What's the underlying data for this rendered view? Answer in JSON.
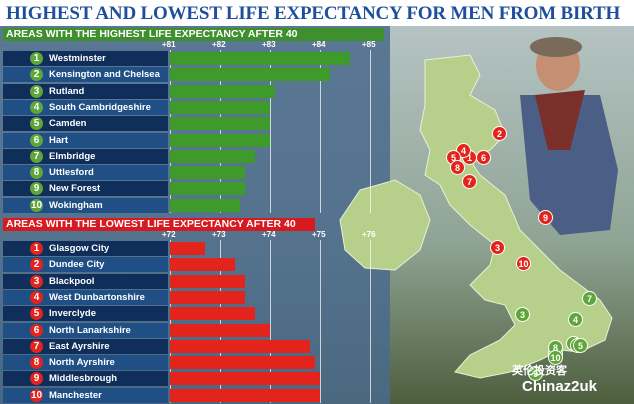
{
  "title": "HIGHEST AND LOWEST LIFE EXPECTANCY FOR MEN FROM BIRTH",
  "watermark": {
    "line1": "英伦投资客",
    "line2": "Chinaz2uk"
  },
  "colors": {
    "title": "#1d4f9c",
    "high": "#3f9a2c",
    "low": "#e3241d",
    "row_dark": "#0f2e5a",
    "row_light": "#1f4f85"
  },
  "chart_data": [
    {
      "type": "bar",
      "title": "AREAS WITH THE HIGHEST LIFE EXPECTANCY AFTER 40",
      "orientation": "horizontal",
      "ticks": [
        "+81",
        "+82",
        "+83",
        "+84",
        "+85"
      ],
      "xlim": [
        81,
        85
      ],
      "ranks": [
        "1",
        "2",
        "3",
        "4",
        "5",
        "6",
        "7",
        "8",
        "9",
        "10"
      ],
      "categories": [
        "Westminster",
        "Kensington and Chelsea",
        "Rutland",
        "South Cambridgeshire",
        "Camden",
        "Hart",
        "Elmbridge",
        "Uttlesford",
        "New Forest",
        "Wokingham"
      ],
      "values": [
        84.6,
        84.2,
        83.1,
        83.0,
        83.0,
        83.0,
        82.7,
        82.5,
        82.5,
        82.4
      ]
    },
    {
      "type": "bar",
      "title": "AREAS WITH THE LOWEST LIFE EXPECTANCY AFTER 40",
      "orientation": "horizontal",
      "ticks": [
        "+72",
        "+73",
        "+74",
        "+75",
        "+76"
      ],
      "xlim": [
        72,
        76
      ],
      "ranks": [
        "1",
        "2",
        "3",
        "4",
        "5",
        "6",
        "7",
        "8",
        "9",
        "10"
      ],
      "categories": [
        "Glasgow City",
        "Dundee City",
        "Blackpool",
        "West Dunbartonshire",
        "Inverclyde",
        "North Lanarkshire",
        "East Ayrshire",
        "North Ayrshire",
        "Middlesbrough",
        "Manchester"
      ],
      "values": [
        72.7,
        73.3,
        73.5,
        73.5,
        73.7,
        74.0,
        74.8,
        74.9,
        75.0,
        75.0
      ]
    }
  ],
  "map": {
    "red_pins": [
      "1",
      "2",
      "3",
      "4",
      "5",
      "6",
      "7",
      "8",
      "9",
      "10"
    ],
    "green_pins": [
      "1",
      "2",
      "3",
      "4",
      "5",
      "6",
      "7",
      "8",
      "9",
      "10"
    ]
  }
}
